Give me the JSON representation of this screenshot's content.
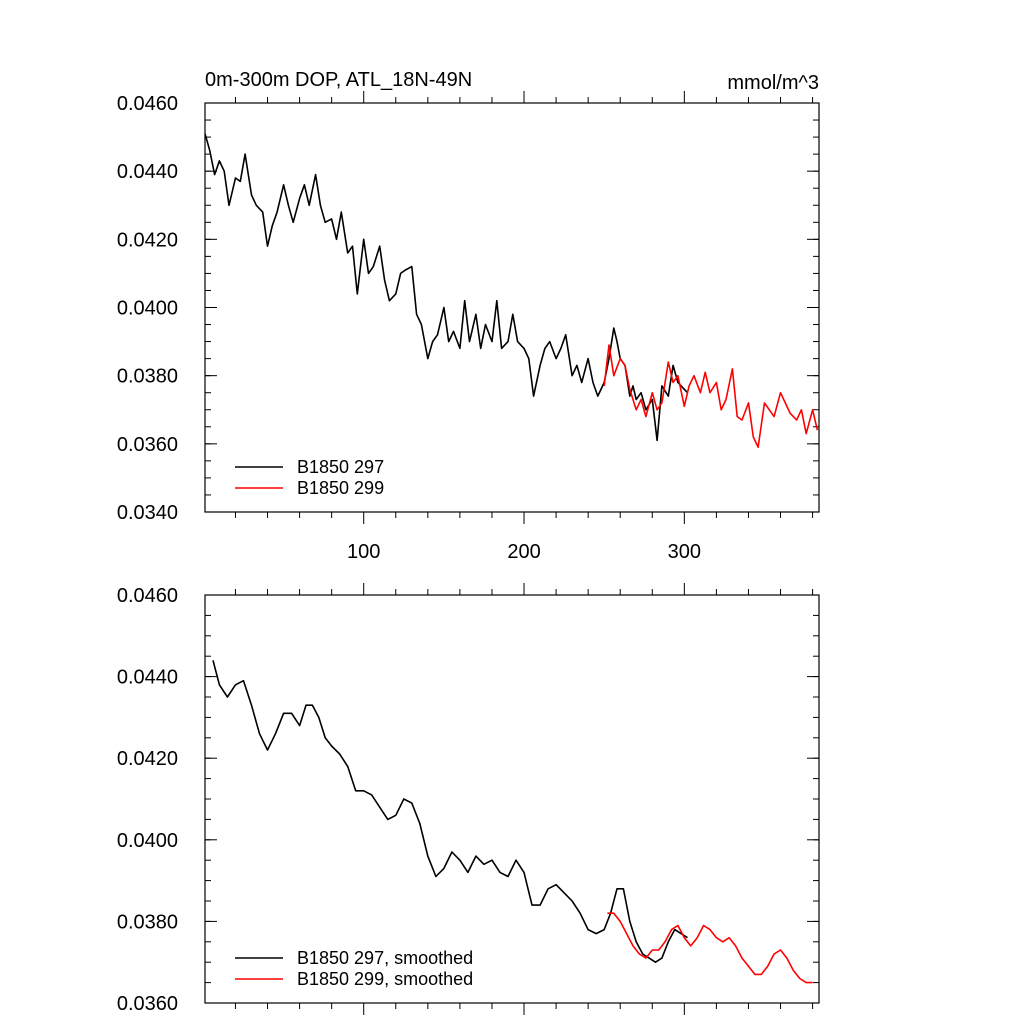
{
  "chart_data": [
    {
      "type": "line",
      "title": "0m-300m DOP, ATL_18N-49N",
      "units": "mmol/m^3",
      "xlim": [
        1,
        384
      ],
      "ylim": [
        0.034,
        0.046
      ],
      "x_ticks": [
        100,
        200,
        300
      ],
      "x_tick_labels": [
        "100",
        "200",
        "300"
      ],
      "y_ticks": [
        0.034,
        0.036,
        0.038,
        0.04,
        0.042,
        0.044,
        0.046
      ],
      "y_tick_labels": [
        "0.0340",
        "0.0360",
        "0.0380",
        "0.0400",
        "0.0420",
        "0.0440",
        "0.0460"
      ],
      "legend_location": "bottom-left",
      "series": [
        {
          "name": "B1850 297",
          "color": "#000000",
          "x": [
            1,
            4,
            7,
            10,
            13,
            16,
            20,
            23,
            26,
            30,
            33,
            37,
            40,
            43,
            46,
            50,
            53,
            56,
            60,
            63,
            66,
            70,
            73,
            76,
            80,
            83,
            86,
            90,
            93,
            96,
            100,
            103,
            106,
            110,
            113,
            116,
            120,
            123,
            126,
            130,
            133,
            136,
            140,
            143,
            146,
            150,
            153,
            156,
            160,
            163,
            166,
            170,
            173,
            176,
            180,
            183,
            186,
            190,
            193,
            196,
            200,
            203,
            206,
            210,
            213,
            216,
            220,
            223,
            226,
            230,
            233,
            236,
            240,
            243,
            246,
            250,
            253,
            256,
            258,
            260,
            263,
            266,
            268,
            270,
            273,
            276,
            280,
            283,
            286,
            290,
            293,
            296,
            300,
            302
          ],
          "values": [
            0.0451,
            0.0446,
            0.0439,
            0.0443,
            0.044,
            0.043,
            0.0438,
            0.0437,
            0.0445,
            0.0433,
            0.043,
            0.0428,
            0.0418,
            0.0424,
            0.0428,
            0.0436,
            0.043,
            0.0425,
            0.0432,
            0.0436,
            0.043,
            0.0439,
            0.043,
            0.0425,
            0.0426,
            0.042,
            0.0428,
            0.0416,
            0.0418,
            0.0404,
            0.042,
            0.041,
            0.0412,
            0.0418,
            0.0408,
            0.0402,
            0.0404,
            0.041,
            0.0411,
            0.0412,
            0.0398,
            0.0395,
            0.0385,
            0.039,
            0.0392,
            0.04,
            0.039,
            0.0393,
            0.0388,
            0.0402,
            0.039,
            0.0398,
            0.0388,
            0.0395,
            0.039,
            0.0402,
            0.0388,
            0.039,
            0.0398,
            0.039,
            0.0388,
            0.0385,
            0.0374,
            0.0383,
            0.0388,
            0.039,
            0.0385,
            0.0388,
            0.0392,
            0.038,
            0.0383,
            0.0378,
            0.0385,
            0.0378,
            0.0374,
            0.0378,
            0.0385,
            0.0394,
            0.039,
            0.0385,
            0.0383,
            0.0374,
            0.0377,
            0.0373,
            0.0375,
            0.037,
            0.0373,
            0.0361,
            0.0377,
            0.0374,
            0.0383,
            0.0378,
            0.0376,
            0.0375
          ]
        },
        {
          "name": "B1850 299",
          "color": "#ff0000",
          "x": [
            250,
            253,
            256,
            260,
            263,
            266,
            270,
            273,
            276,
            280,
            283,
            286,
            290,
            293,
            296,
            300,
            303,
            306,
            310,
            313,
            316,
            320,
            323,
            326,
            330,
            333,
            336,
            340,
            343,
            346,
            350,
            353,
            356,
            360,
            363,
            366,
            370,
            373,
            376,
            380,
            383
          ],
          "values": [
            0.0377,
            0.0389,
            0.038,
            0.0385,
            0.0383,
            0.0376,
            0.037,
            0.0373,
            0.0368,
            0.0375,
            0.037,
            0.0372,
            0.0384,
            0.0378,
            0.038,
            0.0371,
            0.0377,
            0.038,
            0.0375,
            0.0381,
            0.0375,
            0.0378,
            0.037,
            0.0373,
            0.0382,
            0.0368,
            0.0367,
            0.0372,
            0.0362,
            0.0359,
            0.0372,
            0.037,
            0.0368,
            0.0375,
            0.0372,
            0.0369,
            0.0367,
            0.037,
            0.0363,
            0.037,
            0.0364
          ]
        }
      ]
    },
    {
      "type": "line",
      "xlim": [
        1,
        384
      ],
      "ylim": [
        0.036,
        0.046
      ],
      "x_ticks": [
        100,
        200,
        300
      ],
      "y_ticks": [
        0.036,
        0.038,
        0.04,
        0.042,
        0.044,
        0.046
      ],
      "y_tick_labels": [
        "0.0360",
        "0.0380",
        "0.0400",
        "0.0420",
        "0.0440",
        "0.0460"
      ],
      "legend_location": "bottom-left",
      "series": [
        {
          "name": "B1850 297, smoothed",
          "color": "#000000",
          "x": [
            6,
            10,
            15,
            20,
            25,
            30,
            35,
            40,
            45,
            50,
            55,
            60,
            64,
            68,
            72,
            76,
            80,
            85,
            90,
            95,
            100,
            105,
            110,
            115,
            120,
            125,
            130,
            135,
            140,
            145,
            150,
            155,
            160,
            165,
            170,
            175,
            180,
            185,
            190,
            195,
            200,
            205,
            210,
            215,
            220,
            225,
            230,
            235,
            240,
            245,
            250,
            254,
            258,
            262,
            266,
            270,
            274,
            278,
            282,
            286,
            290,
            294,
            298,
            302
          ],
          "values": [
            0.0444,
            0.0438,
            0.0435,
            0.0438,
            0.0439,
            0.0433,
            0.0426,
            0.0422,
            0.0426,
            0.0431,
            0.0431,
            0.0428,
            0.0433,
            0.0433,
            0.043,
            0.0425,
            0.0423,
            0.0421,
            0.0418,
            0.0412,
            0.0412,
            0.0411,
            0.0408,
            0.0405,
            0.0406,
            0.041,
            0.0409,
            0.0404,
            0.0396,
            0.0391,
            0.0393,
            0.0397,
            0.0395,
            0.0392,
            0.0396,
            0.0394,
            0.0395,
            0.0392,
            0.0391,
            0.0395,
            0.0392,
            0.0384,
            0.0384,
            0.0388,
            0.0389,
            0.0387,
            0.0385,
            0.0382,
            0.0378,
            0.0377,
            0.0378,
            0.0382,
            0.0388,
            0.0388,
            0.038,
            0.0375,
            0.0372,
            0.0371,
            0.037,
            0.0371,
            0.0375,
            0.0378,
            0.0377,
            0.0376
          ]
        },
        {
          "name": "B1850 299, smoothed",
          "color": "#ff0000",
          "x": [
            252,
            256,
            260,
            264,
            268,
            272,
            276,
            280,
            284,
            288,
            292,
            296,
            300,
            304,
            308,
            312,
            316,
            320,
            324,
            328,
            332,
            336,
            340,
            344,
            348,
            352,
            356,
            360,
            364,
            368,
            372,
            376,
            380
          ],
          "values": [
            0.0382,
            0.0382,
            0.038,
            0.0377,
            0.0374,
            0.0372,
            0.0371,
            0.0373,
            0.0373,
            0.0375,
            0.0378,
            0.0379,
            0.0376,
            0.0374,
            0.0376,
            0.0379,
            0.0378,
            0.0376,
            0.0375,
            0.0376,
            0.0374,
            0.0371,
            0.0369,
            0.0367,
            0.0367,
            0.0369,
            0.0372,
            0.0373,
            0.0371,
            0.0368,
            0.0366,
            0.0365,
            0.0365
          ]
        }
      ]
    }
  ]
}
